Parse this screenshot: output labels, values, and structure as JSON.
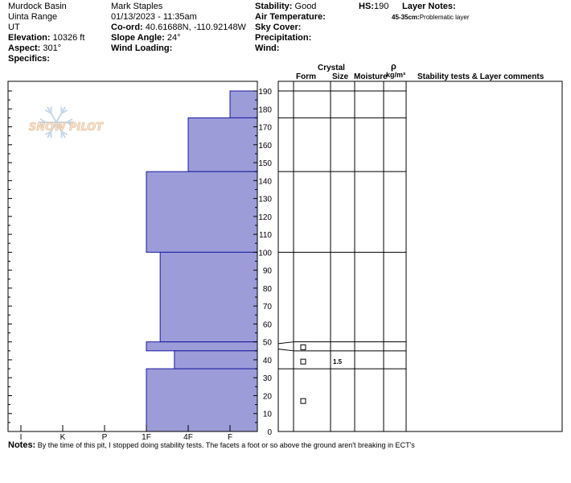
{
  "header": {
    "location": "Murdock Basin",
    "range": "Uinta Range",
    "state": "UT",
    "elevation_label": "Elevation:",
    "elevation_value": "10326 ft",
    "aspect_label": "Aspect:",
    "aspect_value": "301°",
    "specifics_label": "Specifics:",
    "observer": "Mark Staples",
    "datetime": "01/13/2023 - 11:35am",
    "coord_label": "Co-ord:",
    "coord_value": "40.61688N, -110.92148W",
    "slope_label": "Slope Angle:",
    "slope_value": "24°",
    "wind_loading_label": "Wind Loading:",
    "stability_label": "Stability:",
    "stability_value": "Good",
    "air_temp_label": "Air Temperature:",
    "sky_label": "Sky Cover:",
    "precip_label": "Precipitation:",
    "wind_label": "Wind:",
    "hs_label": "HS:",
    "hs_value": "190",
    "layer_notes_label": "Layer Notes:",
    "layer_notes_range": "45-35cm:",
    "layer_notes_text": "Problematic layer"
  },
  "logo": {
    "text": "SNOW PILOT"
  },
  "table_headers": {
    "crystal": "Crystal",
    "form": "Form",
    "size": "Size",
    "moisture": "Moisture",
    "rho": "ρ",
    "density_unit": "kg/m³",
    "comments": "Stability tests & Layer comments"
  },
  "notes": {
    "label": "Notes:",
    "text": "By the time of this pit, I stopped doing stability tests. The facets a foot or so above the ground aren't breaking in ECT's"
  },
  "colors": {
    "hardness_fill": "#9c9cd9",
    "hardness_stroke": "#1a1aa0"
  },
  "chart_data": {
    "type": "bar",
    "orientation": "horizontal",
    "x_axis_categories": [
      "I",
      "K",
      "P",
      "1F",
      "4F",
      "F"
    ],
    "y_ticks": [
      0,
      10,
      20,
      30,
      40,
      50,
      60,
      70,
      80,
      90,
      100,
      110,
      120,
      130,
      140,
      150,
      160,
      170,
      180,
      190
    ],
    "ylim": [
      0,
      190
    ],
    "layers": [
      {
        "top": 190,
        "bottom": 175,
        "hardness": "F"
      },
      {
        "top": 175,
        "bottom": 145,
        "hardness": "4F"
      },
      {
        "top": 145,
        "bottom": 100,
        "hardness": "1F"
      },
      {
        "top": 100,
        "bottom": 50,
        "hardness": "1F+"
      },
      {
        "top": 50,
        "bottom": 45,
        "hardness": "1F"
      },
      {
        "top": 45,
        "bottom": 35,
        "hardness": "4F-"
      },
      {
        "top": 35,
        "bottom": 0,
        "hardness": "1F"
      }
    ],
    "hardness_scale": {
      "I": 0,
      "K": 1,
      "P": 2,
      "1F": 3,
      "1F+": 3.33,
      "4F-": 3.67,
      "4F": 4,
      "F": 5
    },
    "layer_boundaries": [
      190,
      175,
      145,
      100,
      50,
      45,
      35
    ],
    "crystal_form_markers": [
      47,
      39,
      17
    ],
    "crystal_sizes": [
      {
        "depth": 39,
        "size": "1.5"
      }
    ]
  }
}
